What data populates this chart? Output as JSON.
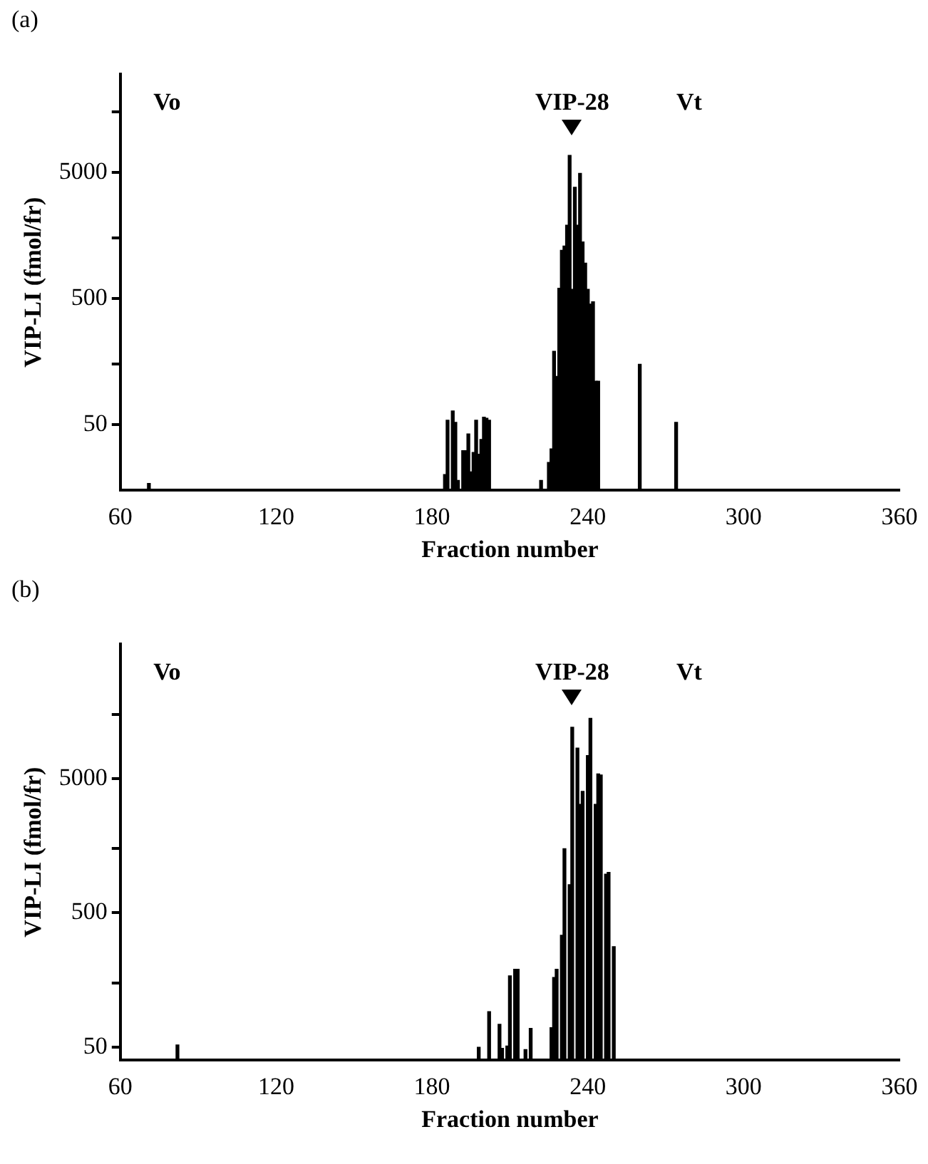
{
  "chart_data": [
    {
      "type": "bar",
      "title": "(a)",
      "xlabel": "Fraction number",
      "ylabel": "VIP-LI (fmol/fr)",
      "color": "#000000",
      "log": "y",
      "x": [
        71,
        185,
        186,
        188,
        189,
        190,
        192,
        193,
        194,
        195,
        196,
        197,
        198,
        199,
        200,
        201,
        202,
        222,
        225,
        226,
        227,
        228,
        229,
        230,
        231,
        232,
        233,
        234,
        235,
        236,
        237,
        238,
        239,
        240,
        241,
        242,
        243,
        244,
        260,
        274
      ],
      "values": [
        17,
        20,
        54,
        64,
        52,
        18,
        31,
        31,
        42,
        21,
        30,
        54,
        29,
        38,
        57,
        56,
        54,
        18,
        25,
        32,
        190,
        120,
        600,
        1200,
        1300,
        1900,
        6800,
        590,
        3800,
        1900,
        4900,
        1400,
        950,
        590,
        450,
        470,
        110,
        110,
        150,
        52
      ],
      "xlim": [
        60,
        360
      ],
      "xticks": [
        60,
        120,
        180,
        240,
        300,
        360
      ],
      "ylim": [
        15,
        30000
      ],
      "yticks": [
        50,
        {
          "value": 150,
          "label": null
        },
        500,
        {
          "value": 1500,
          "label": null
        },
        5000,
        {
          "value": 15000,
          "label": null
        }
      ],
      "annotations": [
        "Vo",
        "VIP-28",
        "Vt"
      ]
    },
    {
      "type": "bar",
      "title": "(b)",
      "xlabel": "Fraction number",
      "ylabel": "VIP-LI (fmol/fr)",
      "color": "#000000",
      "log": "y",
      "x": [
        82,
        198,
        202,
        206,
        207,
        209,
        210,
        212,
        213,
        216,
        218,
        226,
        227,
        228,
        230,
        231,
        233,
        234,
        236,
        237,
        238,
        240,
        241,
        243,
        244,
        245,
        247,
        248,
        250
      ],
      "values": [
        52,
        50,
        92,
        74,
        49,
        51,
        170,
        190,
        190,
        48,
        69,
        70,
        165,
        190,
        340,
        1500,
        810,
        12000,
        8400,
        3200,
        4000,
        7400,
        14000,
        3200,
        5400,
        5300,
        970,
        1000,
        280
      ],
      "xlim": [
        60,
        360
      ],
      "xticks": [
        60,
        120,
        180,
        240,
        300,
        360
      ],
      "ylim": [
        40,
        50000
      ],
      "yticks": [
        50,
        {
          "value": 150,
          "label": null
        },
        500,
        {
          "value": 1500,
          "label": null
        },
        5000,
        {
          "value": 15000,
          "label": null
        }
      ],
      "annotations": [
        "Vo",
        "VIP-28",
        "Vt"
      ]
    }
  ]
}
